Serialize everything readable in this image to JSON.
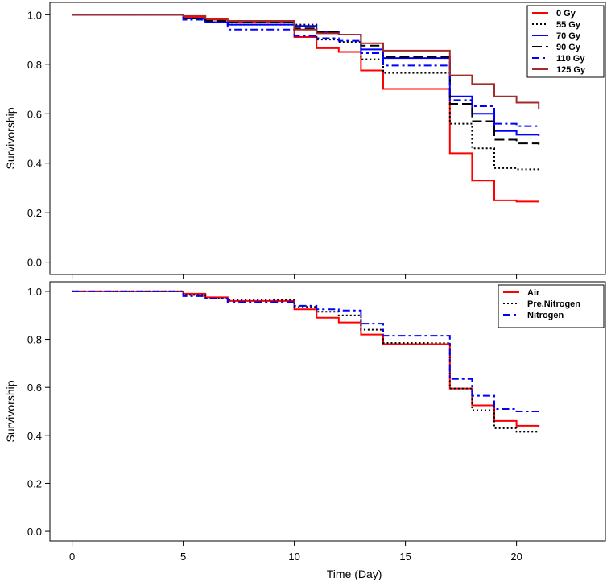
{
  "chart_data": [
    {
      "type": "line",
      "step": true,
      "title": "",
      "xlabel": "",
      "ylabel": "Survivorship",
      "xlim": [
        -1,
        24
      ],
      "ylim": [
        -0.05,
        1.05
      ],
      "yticks": [
        0.0,
        0.2,
        0.4,
        0.6,
        0.8,
        1.0
      ],
      "ytick_labels": [
        "0.0",
        "0.2",
        "0.4",
        "0.6",
        "0.8",
        "1.0"
      ],
      "legend_position": "top-right",
      "series": [
        {
          "name": "0 Gy",
          "color": "#ff0000",
          "dash": "solid",
          "x": [
            0,
            5,
            6,
            7,
            10,
            11,
            12,
            13,
            14,
            17,
            18,
            19,
            20,
            21
          ],
          "y": [
            1.0,
            0.99,
            0.98,
            0.97,
            0.91,
            0.865,
            0.85,
            0.775,
            0.7,
            0.44,
            0.33,
            0.25,
            0.245,
            0.245
          ]
        },
        {
          "name": "55 Gy",
          "color": "#000000",
          "dash": "dotted",
          "x": [
            0,
            5,
            6,
            7,
            10,
            11,
            12,
            13,
            14,
            17,
            18,
            19,
            20,
            21
          ],
          "y": [
            1.0,
            0.985,
            0.97,
            0.96,
            0.96,
            0.9,
            0.89,
            0.82,
            0.765,
            0.56,
            0.46,
            0.38,
            0.375,
            0.375
          ]
        },
        {
          "name": "70 Gy",
          "color": "#0000ff",
          "dash": "solid",
          "x": [
            0,
            5,
            6,
            7,
            10,
            11,
            12,
            13,
            14,
            17,
            18,
            19,
            20,
            21
          ],
          "y": [
            1.0,
            0.985,
            0.97,
            0.96,
            0.955,
            0.93,
            0.92,
            0.86,
            0.825,
            0.67,
            0.6,
            0.53,
            0.515,
            0.51
          ]
        },
        {
          "name": "90 Gy",
          "color": "#000000",
          "dash": "longdash",
          "x": [
            0,
            5,
            6,
            7,
            10,
            11,
            12,
            13,
            14,
            17,
            18,
            19,
            20,
            21
          ],
          "y": [
            1.0,
            0.985,
            0.975,
            0.97,
            0.945,
            0.93,
            0.92,
            0.875,
            0.83,
            0.64,
            0.57,
            0.495,
            0.48,
            0.475
          ]
        },
        {
          "name": "110 Gy",
          "color": "#0000ff",
          "dash": "dashdot",
          "x": [
            0,
            5,
            6,
            7,
            10,
            11,
            12,
            13,
            14,
            17,
            18,
            19,
            20,
            21
          ],
          "y": [
            1.0,
            0.98,
            0.97,
            0.94,
            0.915,
            0.905,
            0.895,
            0.845,
            0.795,
            0.655,
            0.63,
            0.56,
            0.55,
            0.545
          ]
        },
        {
          "name": "125 Gy",
          "color": "#a52a2a",
          "dash": "solid",
          "x": [
            0,
            5,
            6,
            7,
            10,
            11,
            12,
            13,
            14,
            17,
            18,
            19,
            20,
            21
          ],
          "y": [
            1.0,
            0.995,
            0.985,
            0.975,
            0.94,
            0.925,
            0.92,
            0.885,
            0.855,
            0.755,
            0.72,
            0.67,
            0.645,
            0.62
          ]
        }
      ]
    },
    {
      "type": "line",
      "step": true,
      "title": "",
      "xlabel": "Time (Day)",
      "ylabel": "Survivorship",
      "xlim": [
        -1,
        24
      ],
      "ylim": [
        -0.04,
        1.04
      ],
      "xticks": [
        0,
        5,
        10,
        15,
        20
      ],
      "xtick_labels": [
        "0",
        "5",
        "10",
        "15",
        "20"
      ],
      "yticks": [
        0.0,
        0.2,
        0.4,
        0.6,
        0.8,
        1.0
      ],
      "ytick_labels": [
        "0.0",
        "0.2",
        "0.4",
        "0.6",
        "0.8",
        "1.0"
      ],
      "legend_position": "top-right",
      "series": [
        {
          "name": "Air",
          "color": "#ff0000",
          "dash": "solid",
          "x": [
            0,
            5,
            6,
            7,
            10,
            11,
            12,
            13,
            14,
            17,
            18,
            19,
            20,
            21
          ],
          "y": [
            1.0,
            0.99,
            0.975,
            0.96,
            0.925,
            0.89,
            0.87,
            0.82,
            0.78,
            0.595,
            0.525,
            0.46,
            0.44,
            0.435
          ]
        },
        {
          "name": "Pre.Nitrogen",
          "color": "#000000",
          "dash": "dotted",
          "x": [
            0,
            5,
            6,
            7,
            10,
            11,
            12,
            13,
            14,
            17,
            18,
            19,
            20,
            21
          ],
          "y": [
            1.0,
            0.985,
            0.97,
            0.965,
            0.935,
            0.915,
            0.9,
            0.84,
            0.785,
            0.595,
            0.505,
            0.43,
            0.415,
            0.415
          ]
        },
        {
          "name": "Nitrogen",
          "color": "#0000ff",
          "dash": "dashdot",
          "x": [
            0,
            5,
            6,
            7,
            10,
            11,
            12,
            13,
            14,
            17,
            18,
            19,
            20,
            21
          ],
          "y": [
            1.0,
            0.98,
            0.97,
            0.955,
            0.94,
            0.925,
            0.92,
            0.865,
            0.815,
            0.635,
            0.565,
            0.51,
            0.5,
            0.5
          ]
        }
      ]
    }
  ]
}
